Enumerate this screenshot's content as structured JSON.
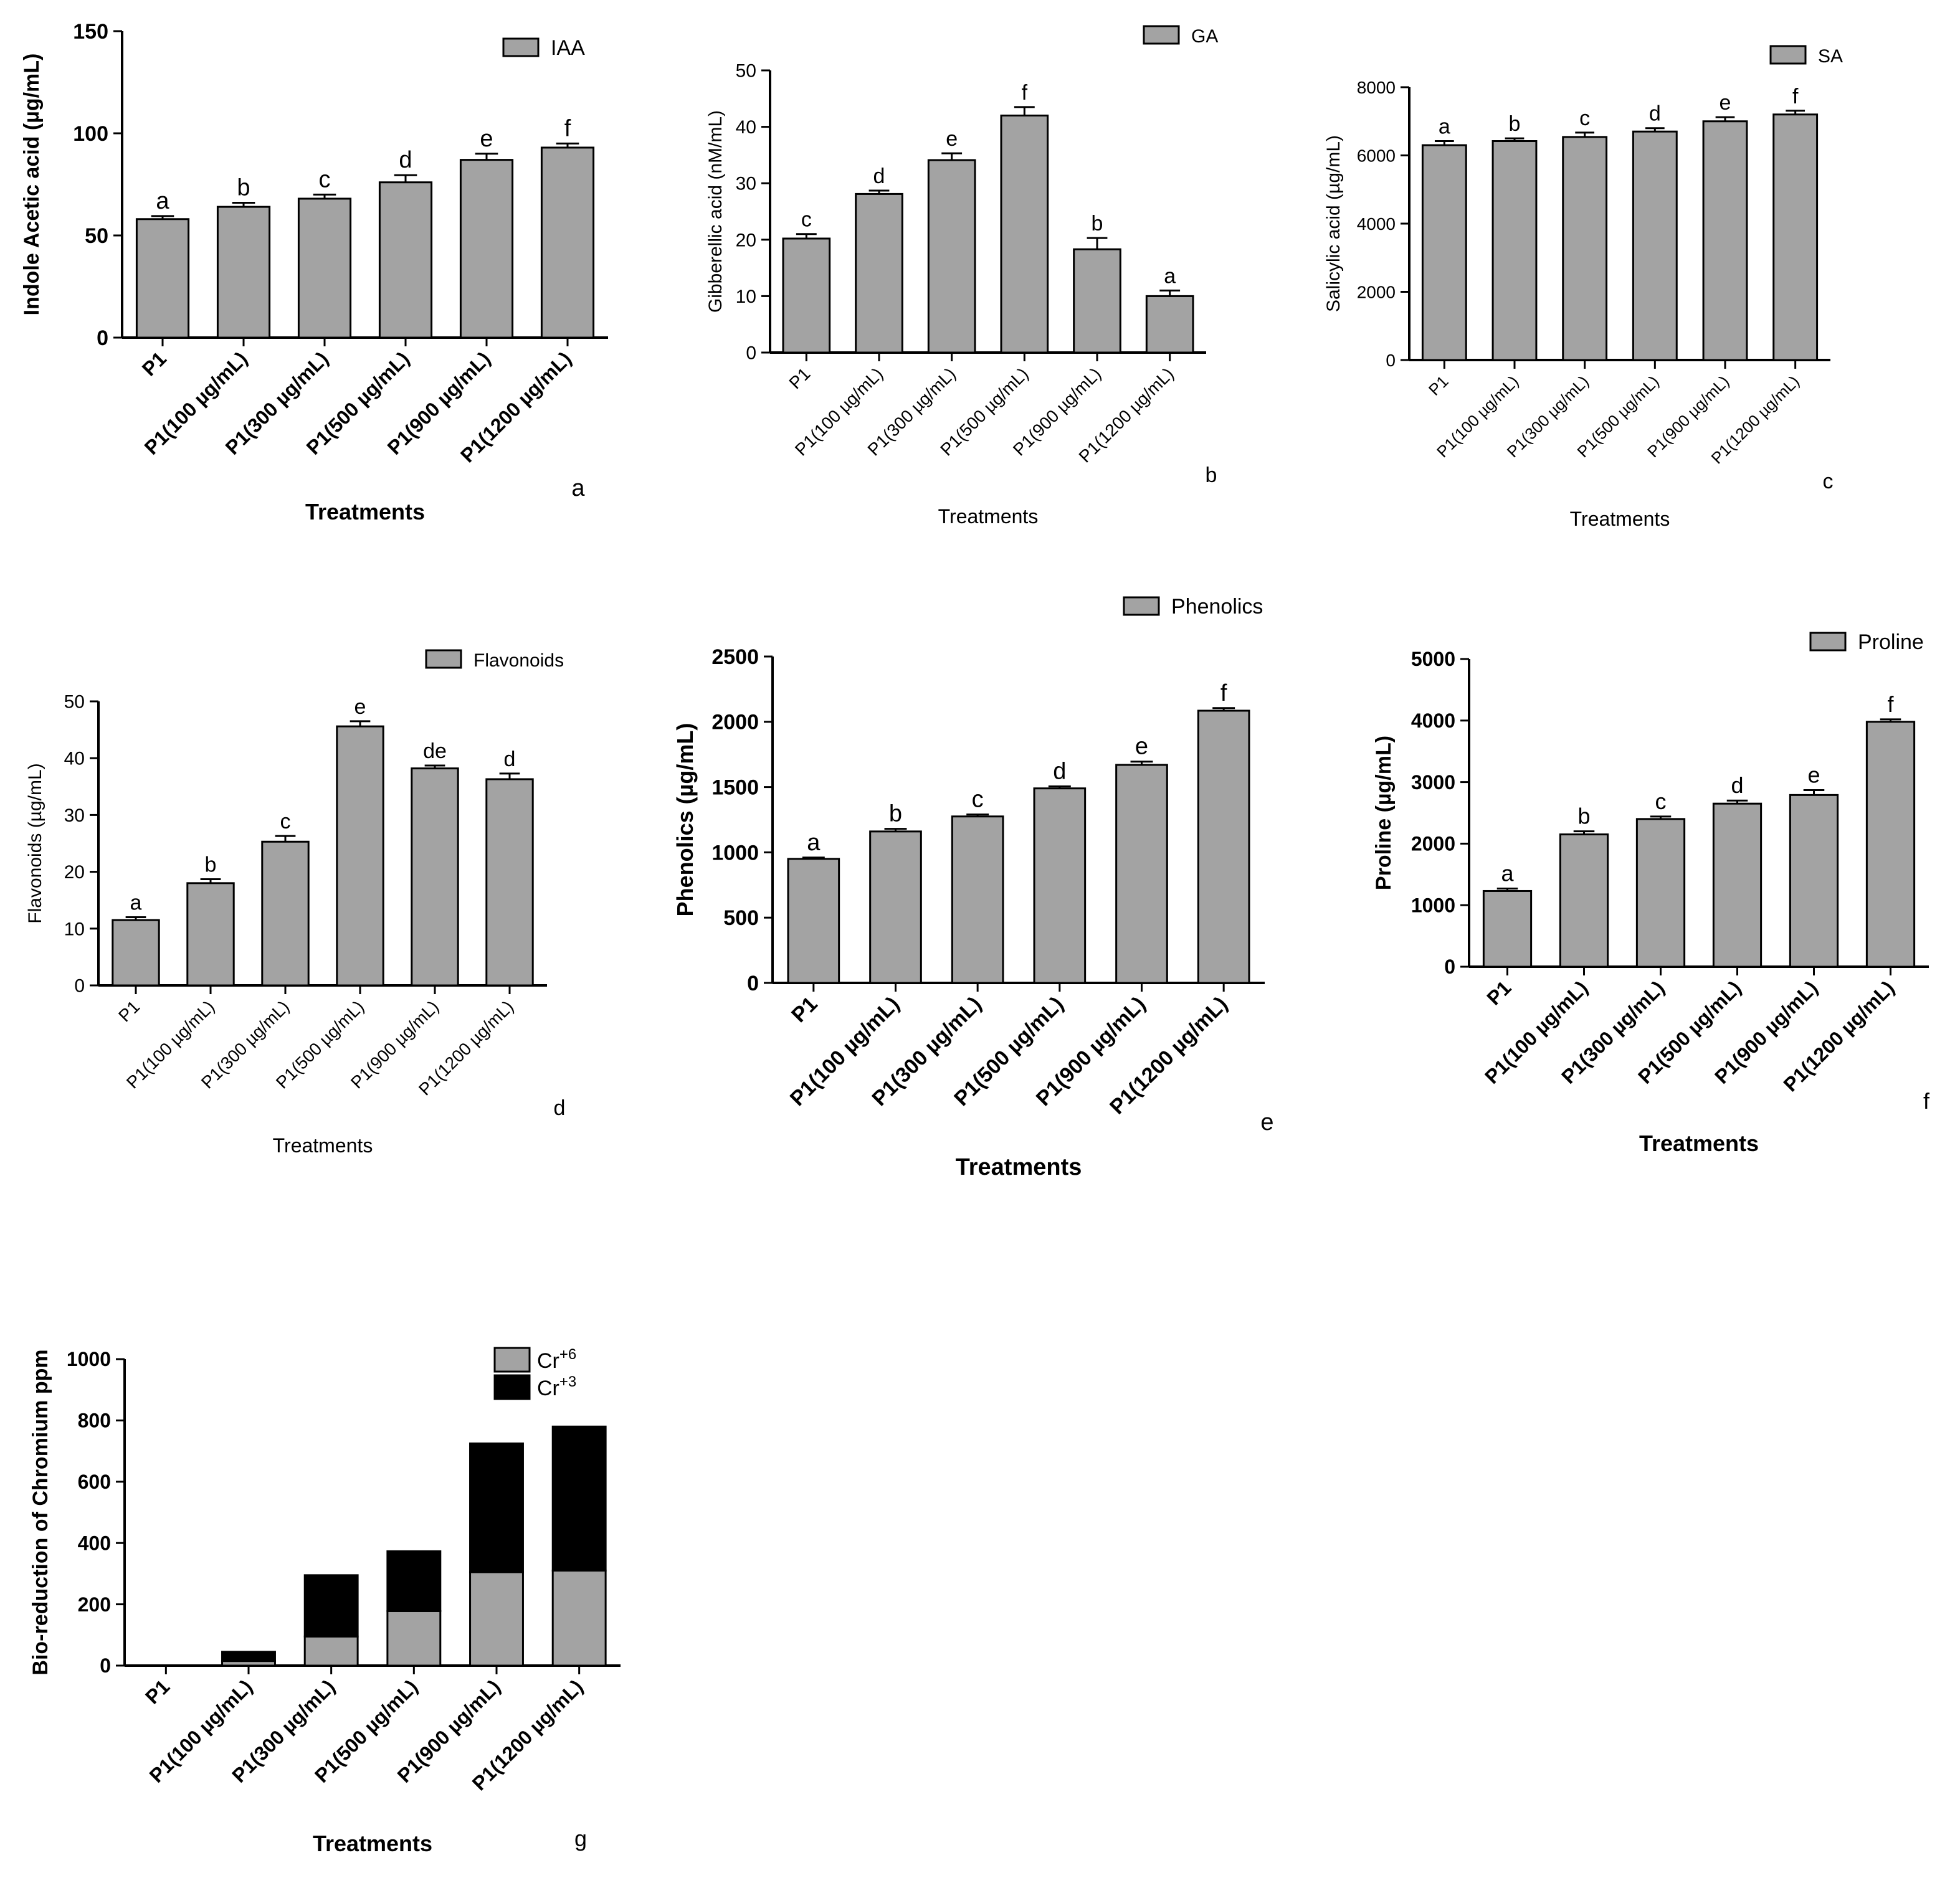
{
  "figure": {
    "panels": [
      "a",
      "b",
      "c",
      "d",
      "e",
      "f",
      "g"
    ]
  },
  "chart_data": [
    {
      "id": "a",
      "type": "bar",
      "panel_label": "a",
      "title": "",
      "xlabel": "Treatments",
      "ylabel": "Indole Acetic acid (µg/mL)",
      "categories": [
        "P1",
        "P1(100 µg/mL)",
        "P1(300 µg/mL)",
        "P1(500 µg/mL)",
        "P1(900 µg/mL)",
        "P1(1200 µg/mL)"
      ],
      "values": [
        58,
        64,
        68,
        76,
        87,
        93
      ],
      "errors": [
        1.5,
        2,
        2,
        3.5,
        3,
        2
      ],
      "significance_letters": [
        "a",
        "b",
        "c",
        "d",
        "e",
        "f"
      ],
      "legend": [
        "IAA"
      ],
      "ylim": [
        0,
        150
      ],
      "yticks": [
        0,
        50,
        100,
        150
      ],
      "bar_color": "#a3a3a3"
    },
    {
      "id": "b",
      "type": "bar",
      "panel_label": "b",
      "title": "",
      "xlabel": "Treatments",
      "ylabel": "Gibberellic acid (nM/mL)",
      "categories": [
        "P1",
        "P1(100 µg/mL)",
        "P1(300 µg/mL)",
        "P1(500 µg/mL)",
        "P1(900 µg/mL)",
        "P1(1200 µg/mL)"
      ],
      "values": [
        20.2,
        28.1,
        34.1,
        42,
        18.3,
        10
      ],
      "errors": [
        0.8,
        0.6,
        1.2,
        1.5,
        2,
        1
      ],
      "significance_letters": [
        "c",
        "d",
        "e",
        "f",
        "b",
        "a"
      ],
      "legend": [
        "GA"
      ],
      "ylim": [
        0,
        50
      ],
      "yticks": [
        0,
        10,
        20,
        30,
        40,
        50
      ],
      "bar_color": "#a3a3a3"
    },
    {
      "id": "c",
      "type": "bar",
      "panel_label": "c",
      "title": "",
      "xlabel": "Treatments",
      "ylabel": "Salicylic acid (µg/mL)",
      "categories": [
        "P1",
        "P1(100 µg/mL)",
        "P1(300 µg/mL)",
        "P1(500 µg/mL)",
        "P1(900 µg/mL)",
        "P1(1200 µg/mL)"
      ],
      "values": [
        6300,
        6420,
        6540,
        6700,
        7000,
        7200
      ],
      "errors": [
        120,
        80,
        130,
        100,
        120,
        110
      ],
      "significance_letters": [
        "a",
        "b",
        "c",
        "d",
        "e",
        "f"
      ],
      "legend": [
        "SA"
      ],
      "ylim": [
        0,
        8000
      ],
      "yticks": [
        0,
        2000,
        4000,
        6000,
        8000
      ],
      "bar_color": "#a3a3a3"
    },
    {
      "id": "d",
      "type": "bar",
      "panel_label": "d",
      "title": "",
      "xlabel": "Treatments",
      "ylabel": "Flavonoids (µg/mL)",
      "categories": [
        "P1",
        "P1(100 µg/mL)",
        "P1(300 µg/mL)",
        "P1(500 µg/mL)",
        "P1(900 µg/mL)",
        "P1(1200 µg/mL)"
      ],
      "values": [
        11.5,
        18,
        25.3,
        45.6,
        38.2,
        36.3
      ],
      "errors": [
        0.5,
        0.7,
        1,
        0.9,
        0.5,
        1
      ],
      "significance_letters": [
        "a",
        "b",
        "c",
        "e",
        "de",
        "d"
      ],
      "legend": [
        "Flavonoids"
      ],
      "ylim": [
        0,
        50
      ],
      "yticks": [
        0,
        10,
        20,
        30,
        40,
        50
      ],
      "bar_color": "#a3a3a3"
    },
    {
      "id": "e",
      "type": "bar",
      "panel_label": "e",
      "title": "",
      "xlabel": "Treatments",
      "ylabel": "Phenolics (µg/mL)",
      "categories": [
        "P1",
        "P1(100 µg/mL)",
        "P1(300 µg/mL)",
        "P1(500 µg/mL)",
        "P1(900 µg/mL)",
        "P1(1200 µg/mL)"
      ],
      "values": [
        950,
        1160,
        1275,
        1490,
        1670,
        2085
      ],
      "errors": [
        10,
        20,
        15,
        15,
        25,
        20
      ],
      "significance_letters": [
        "a",
        "b",
        "c",
        "d",
        "e",
        "f"
      ],
      "legend": [
        "Phenolics"
      ],
      "ylim": [
        0,
        2500
      ],
      "yticks": [
        0,
        500,
        1000,
        1500,
        2000,
        2500
      ],
      "bar_color": "#a3a3a3"
    },
    {
      "id": "f",
      "type": "bar",
      "panel_label": "f",
      "title": "",
      "xlabel": "Treatments",
      "ylabel": "Proline (µg/mL)",
      "categories": [
        "P1",
        "P1(100 µg/mL)",
        "P1(300 µg/mL)",
        "P1(500 µg/mL)",
        "P1(900 µg/mL)",
        "P1(1200 µg/mL)"
      ],
      "values": [
        1230,
        2150,
        2400,
        2650,
        2790,
        3980
      ],
      "errors": [
        40,
        50,
        40,
        50,
        80,
        40
      ],
      "significance_letters": [
        "a",
        "b",
        "c",
        "d",
        "e",
        "f"
      ],
      "legend": [
        "Proline"
      ],
      "ylim": [
        0,
        5000
      ],
      "yticks": [
        0,
        1000,
        2000,
        3000,
        4000,
        5000
      ],
      "bar_color": "#a3a3a3"
    },
    {
      "id": "g",
      "type": "bar",
      "stacked": true,
      "panel_label": "g",
      "title": "",
      "xlabel": "Treatments",
      "ylabel": "Bio-reduction of Chromium ppm",
      "categories": [
        "P1",
        "P1(100 µg/mL)",
        "P1(300 µg/mL)",
        "P1(500 µg/mL)",
        "P1(900 µg/mL)",
        "P1(1200 µg/mL)"
      ],
      "series": [
        {
          "name": "Cr",
          "superscript": "+6",
          "color": "#a3a3a3",
          "values": [
            0,
            15,
            95,
            178,
            305,
            310
          ]
        },
        {
          "name": "Cr",
          "superscript": "+3",
          "color": "#000000",
          "values": [
            0,
            30,
            200,
            195,
            420,
            470
          ]
        }
      ],
      "ylim": [
        0,
        1000
      ],
      "yticks": [
        0,
        200,
        400,
        600,
        800,
        1000
      ]
    }
  ]
}
